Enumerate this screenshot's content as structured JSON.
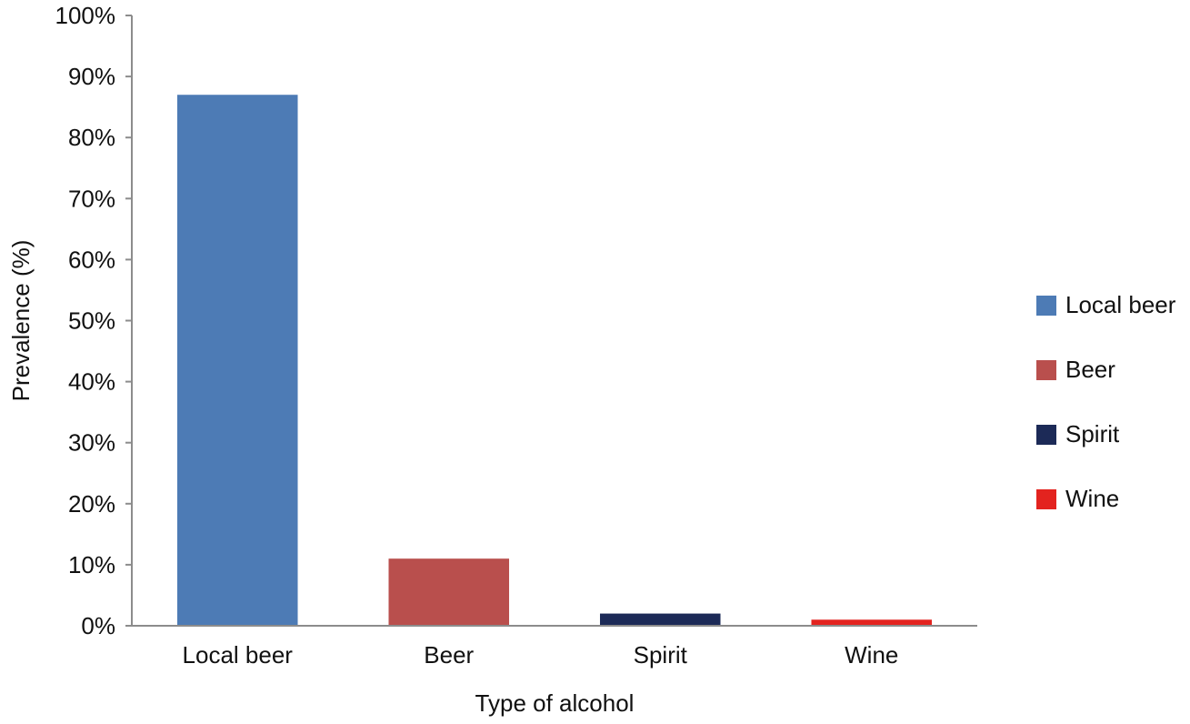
{
  "chart_data": {
    "type": "bar",
    "categories": [
      "Local beer",
      "Beer",
      "Spirit",
      "Wine"
    ],
    "values": [
      87,
      11,
      2,
      1
    ],
    "colors": [
      "#4d7bb5",
      "#b94f4d",
      "#1c2a57",
      "#e3231f"
    ],
    "xlabel": "Type of alcohol",
    "ylabel": "Prevalence (%)",
    "ylim": [
      0,
      100
    ],
    "y_ticks": [
      "0%",
      "10%",
      "20%",
      "30%",
      "40%",
      "50%",
      "60%",
      "70%",
      "80%",
      "90%",
      "100%"
    ],
    "grid": false,
    "legend": {
      "placement": "right",
      "entries": [
        "Local beer",
        "Beer",
        "Spirit",
        "Wine"
      ]
    }
  }
}
